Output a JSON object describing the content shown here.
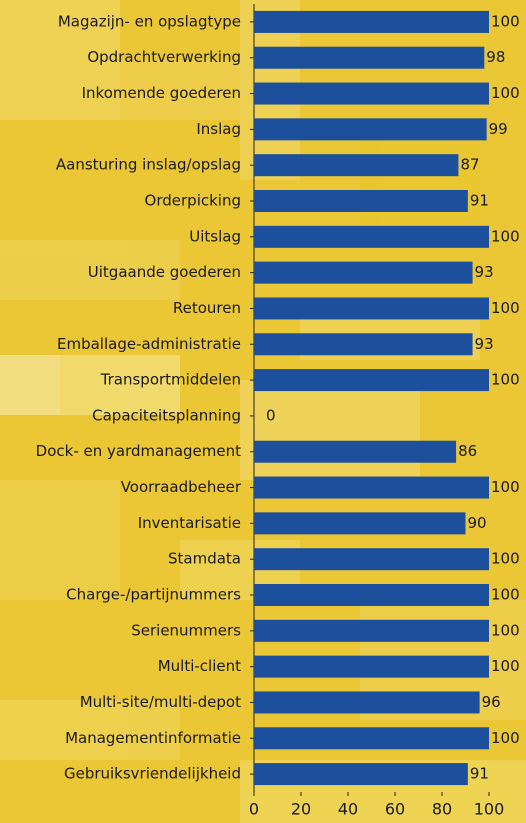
{
  "chart_data": {
    "type": "bar",
    "orientation": "horizontal",
    "categories": [
      "Magazijn- en opslagtype",
      "Opdrachtverwerking",
      "Inkomende goederen",
      "Inslag",
      "Aansturing inslag/opslag",
      "Orderpicking",
      "Uitslag",
      "Uitgaande goederen",
      "Retouren",
      "Emballage-administratie",
      "Transportmiddelen",
      "Capaciteitsplanning",
      "Dock- en yardmanagement",
      "Voorraadbeheer",
      "Inventarisatie",
      "Stamdata",
      "Charge-/partijnummers",
      "Serienummers",
      "Multi-client",
      "Multi-site/multi-depot",
      "Managementinformatie",
      "Gebruiksvriendelijkheid"
    ],
    "values": [
      100,
      98,
      100,
      99,
      87,
      91,
      100,
      93,
      100,
      93,
      100,
      0,
      86,
      100,
      90,
      100,
      100,
      100,
      100,
      96,
      100,
      91
    ],
    "color": "#1c4f9c",
    "xlim": [
      0,
      100
    ],
    "xticks": [
      0,
      20,
      40,
      60,
      80,
      100
    ],
    "grid": false
  }
}
